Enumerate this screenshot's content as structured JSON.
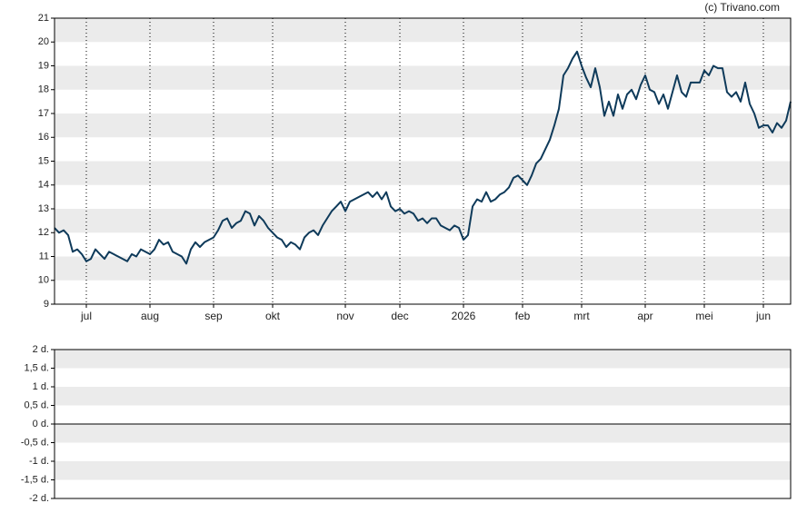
{
  "chart_data": [
    {
      "type": "line",
      "source": "(c) Trivano.com",
      "xlim": [
        0,
        162
      ],
      "xticks": [
        {
          "value": 7,
          "label": "jul"
        },
        {
          "value": 21,
          "label": "aug"
        },
        {
          "value": 35,
          "label": "sep"
        },
        {
          "value": 48,
          "label": "okt"
        },
        {
          "value": 64,
          "label": "nov"
        },
        {
          "value": 76,
          "label": "dec"
        },
        {
          "value": 90,
          "label": "2026"
        },
        {
          "value": 103,
          "label": "feb"
        },
        {
          "value": 116,
          "label": "mrt"
        },
        {
          "value": 130,
          "label": "apr"
        },
        {
          "value": 143,
          "label": "mei"
        },
        {
          "value": 156,
          "label": "jun"
        }
      ],
      "ylim": [
        9,
        21
      ],
      "yticks": [
        9,
        10,
        11,
        12,
        13,
        14,
        15,
        16,
        17,
        18,
        19,
        20,
        21
      ],
      "grid": true,
      "series": [
        {
          "color": "#0e3a5a",
          "values": [
            12.2,
            12.0,
            12.1,
            11.9,
            11.2,
            11.3,
            11.1,
            10.8,
            10.9,
            11.3,
            11.1,
            10.9,
            11.2,
            11.1,
            11.0,
            10.9,
            10.8,
            11.1,
            11.0,
            11.3,
            11.2,
            11.1,
            11.3,
            11.7,
            11.5,
            11.6,
            11.2,
            11.1,
            11.0,
            10.7,
            11.3,
            11.6,
            11.4,
            11.6,
            11.7,
            11.8,
            12.1,
            12.5,
            12.6,
            12.2,
            12.4,
            12.5,
            12.9,
            12.8,
            12.3,
            12.7,
            12.5,
            12.2,
            12.0,
            11.8,
            11.7,
            11.4,
            11.6,
            11.5,
            11.3,
            11.8,
            12.0,
            12.1,
            11.9,
            12.3,
            12.6,
            12.9,
            13.1,
            13.3,
            12.9,
            13.3,
            13.4,
            13.5,
            13.6,
            13.7,
            13.5,
            13.7,
            13.4,
            13.7,
            13.1,
            12.9,
            13.0,
            12.8,
            12.9,
            12.8,
            12.5,
            12.6,
            12.4,
            12.6,
            12.6,
            12.3,
            12.2,
            12.1,
            12.3,
            12.2,
            11.7,
            11.9,
            13.1,
            13.4,
            13.3,
            13.7,
            13.3,
            13.4,
            13.6,
            13.7,
            13.9,
            14.3,
            14.4,
            14.2,
            14.0,
            14.4,
            14.9,
            15.1,
            15.5,
            15.9,
            16.5,
            17.2,
            18.6,
            18.9,
            19.3,
            19.6,
            19.0,
            18.5,
            18.1,
            18.9,
            18.1,
            16.9,
            17.5,
            16.9,
            17.8,
            17.2,
            17.8,
            18.0,
            17.6,
            18.2,
            18.6,
            18.0,
            17.9,
            17.4,
            17.8,
            17.2,
            17.9,
            18.6,
            17.9,
            17.7,
            18.3,
            18.3,
            18.3,
            18.8,
            18.6,
            19.0,
            18.9,
            18.9,
            17.9,
            17.7,
            17.9,
            17.5,
            18.3,
            17.4,
            17.0,
            16.4,
            16.5,
            16.5,
            16.2,
            16.6,
            16.4,
            16.7,
            17.5
          ]
        }
      ]
    },
    {
      "type": "line",
      "ylim": [
        -2,
        2
      ],
      "yticks": [
        {
          "value": 2,
          "label": "2 d."
        },
        {
          "value": 1.5,
          "label": "1,5 d."
        },
        {
          "value": 1,
          "label": "1 d."
        },
        {
          "value": 0.5,
          "label": "0,5 d."
        },
        {
          "value": 0,
          "label": "0 d."
        },
        {
          "value": -0.5,
          "label": "-0,5 d."
        },
        {
          "value": -1,
          "label": "-1 d."
        },
        {
          "value": -1.5,
          "label": "-1,5 d."
        },
        {
          "value": -2,
          "label": "-2 d."
        }
      ],
      "grid": true
    }
  ]
}
